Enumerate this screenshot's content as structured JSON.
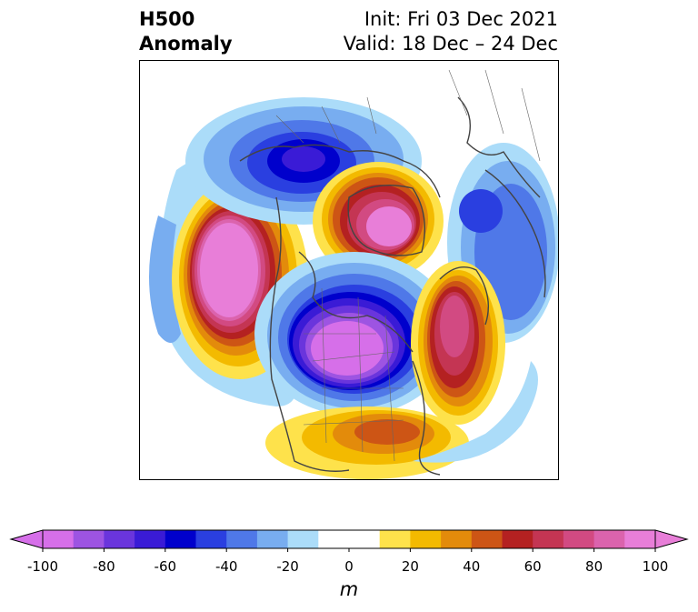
{
  "header": {
    "title_line1": "H500",
    "title_line2": "Anomaly",
    "init_text": "Init: Fri 03 Dec 2021",
    "valid_text": "Valid: 18 Dec – 24 Dec"
  },
  "map": {
    "projection": "north-polar-stereographic",
    "field": "500 hPa geopotential height anomaly",
    "features": [
      "positive anomaly centered off the US West Coast (~+100 m)",
      "negative anomaly over central Canada (~-100 m)",
      "positive anomaly over Greenland (~+90 m)",
      "positive anomaly over the northern Atlantic (~+80 m)",
      "negative anomaly over Siberia/Arctic (~-70 m)",
      "negative anomaly over eastern Europe/western Russia (~-50 m)",
      "positive anomaly over the southeastern US (~+40 m)"
    ]
  },
  "colorbar": {
    "unit_label": "m",
    "min": -100,
    "max": 100,
    "tick_labels": [
      "-100",
      "-80",
      "-60",
      "-40",
      "-20",
      "0",
      "20",
      "40",
      "60",
      "80",
      "100"
    ],
    "colors": [
      "#d66fe9",
      "#9d54e2",
      "#6a35dc",
      "#3a1bd6",
      "#0000cc",
      "#2a3fe0",
      "#4f78e8",
      "#78adf0",
      "#abdcf9",
      "#ffffff",
      "#ffffff",
      "#fee24b",
      "#f3ba00",
      "#e38b0b",
      "#cd5515",
      "#b42121",
      "#c43553",
      "#d24a82",
      "#db63ad",
      "#e87ed8"
    ],
    "extend": "both"
  }
}
